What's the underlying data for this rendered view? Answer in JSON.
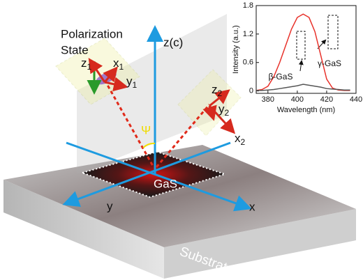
{
  "figure": {
    "polarization": [
      "Polarization",
      "State"
    ],
    "axis_z": "z(c)",
    "axis_x": "x",
    "axis_y": "y",
    "angle": "Ψ",
    "sample": "GaS",
    "substrate": "Substrate",
    "frame1": [
      {
        "base": "z",
        "sub": "1"
      },
      {
        "base": "x",
        "sub": "1"
      },
      {
        "base": "y",
        "sub": "1"
      }
    ],
    "frame2": [
      {
        "base": "z",
        "sub": "2"
      },
      {
        "base": "y",
        "sub": "2"
      },
      {
        "base": "x",
        "sub": "2"
      }
    ]
  },
  "chart_data": {
    "type": "line",
    "x_label": "Wavelength (nm)",
    "y_label": "Intensity (a.u.)",
    "x": [
      372,
      376,
      380,
      384,
      388,
      392,
      396,
      400,
      404,
      408,
      412,
      416,
      420,
      424,
      428,
      432,
      436
    ],
    "series": [
      {
        "name": "γ-GaS",
        "color": "#e8322b",
        "values": [
          0.01,
          0.03,
          0.1,
          0.3,
          0.6,
          0.95,
          1.3,
          1.55,
          1.62,
          1.55,
          1.25,
          0.75,
          0.25,
          0.06,
          0.02,
          0.01,
          0.01
        ]
      },
      {
        "name": "β-GaS",
        "color": "#555555",
        "values": [
          0.01,
          0.01,
          0.02,
          0.03,
          0.05,
          0.07,
          0.09,
          0.11,
          0.14,
          0.12,
          0.1,
          0.08,
          0.05,
          0.04,
          0.03,
          0.02,
          0.02
        ]
      }
    ],
    "xlim": [
      372,
      440
    ],
    "xticks": [
      380,
      400,
      420,
      440
    ],
    "ylim": [
      -0.05,
      1.8
    ],
    "yticks": [
      0,
      0.6,
      1.2,
      1.8
    ]
  }
}
